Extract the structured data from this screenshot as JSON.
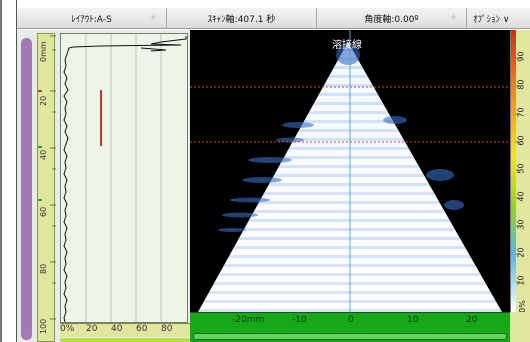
{
  "header": {
    "layout_label": "ﾚｲｱｳﾄ:A-S",
    "scan_axis_label": "ｽｷｬﾝ軸:407.1 秒",
    "angle_axis_label": "角度軸:0.00º",
    "options_label": "ｵﾌﾟｼｮﾝ ∨"
  },
  "ascan": {
    "depth_ticks": [
      "0mm",
      "20",
      "40",
      "60",
      "80",
      "100"
    ],
    "amplitude_ticks": [
      "0%",
      "20",
      "40",
      "60",
      "80"
    ]
  },
  "sscan": {
    "weld_label": "溶接線",
    "index_ticks": [
      "-20mm",
      "-10",
      "0",
      "10",
      "20"
    ]
  },
  "palette": {
    "ticks": [
      "90",
      "80",
      "70",
      "60",
      "50",
      "40",
      "30",
      "20",
      "10",
      "0%"
    ]
  },
  "colors": {
    "depth_bar": "#a47ab6",
    "scale_bg": "#dfe79f",
    "scan_axis_bar": "#17a817",
    "gate_red": "#c0392b",
    "gate_green": "#2ca02c",
    "fan_blue": "#3a6fc4"
  }
}
